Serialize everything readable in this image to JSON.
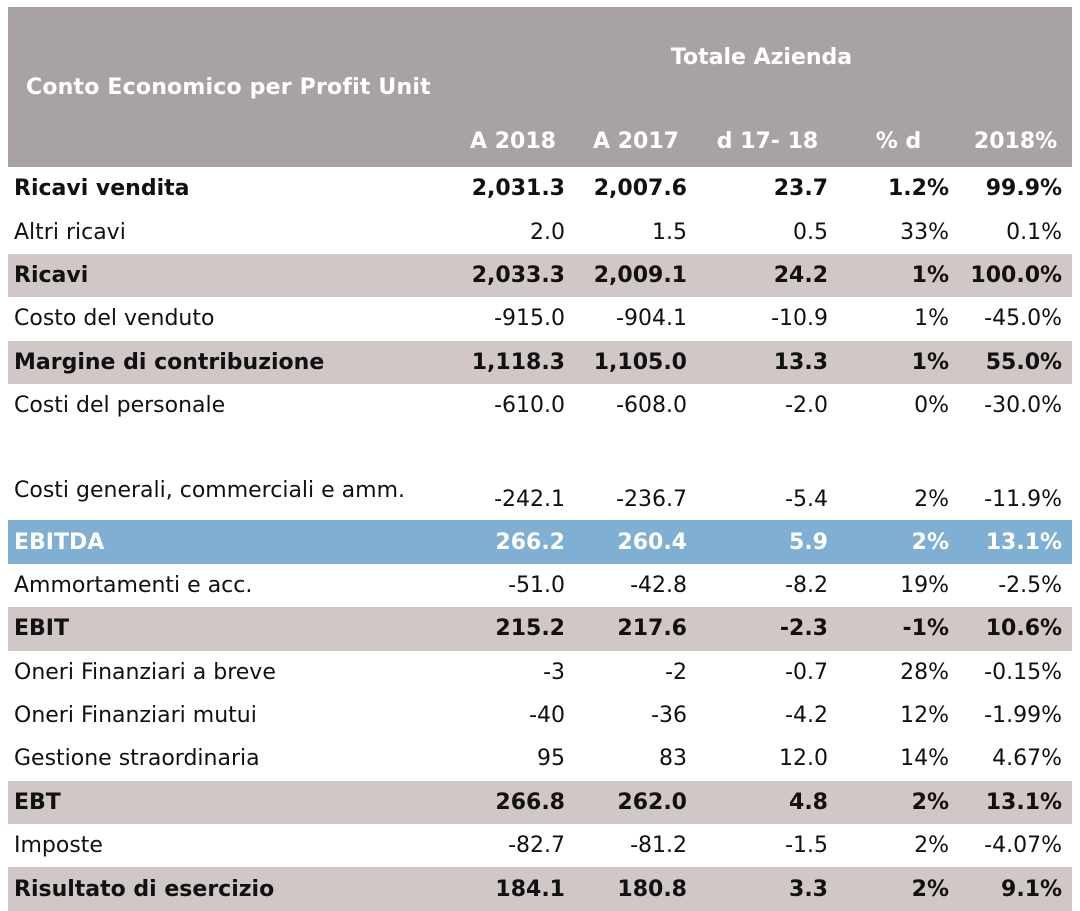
{
  "header": {
    "title": "Conto  Economico  per  Profit  Unit",
    "group": "Totale Azienda",
    "columns": [
      "A 2018",
      "A 2017",
      "d 17- 18",
      "% d",
      "2018%"
    ]
  },
  "rows": [
    {
      "label": "Ricavi vendita",
      "values": [
        "2,031.3",
        "2,007.6",
        "23.7",
        "1.2%",
        "99.9%"
      ]
    },
    {
      "label": "Altri ricavi",
      "values": [
        "2.0",
        "1.5",
        "0.5",
        "33%",
        "0.1%"
      ]
    },
    {
      "label": "Ricavi",
      "values": [
        "2,033.3",
        "2,009.1",
        "24.2",
        "1%",
        "100.0%"
      ]
    },
    {
      "label": "Costo del venduto",
      "values": [
        "-915.0",
        "-904.1",
        "-10.9",
        "1%",
        "-45.0%"
      ]
    },
    {
      "label": "Margine di contribuzione",
      "values": [
        "1,118.3",
        "1,105.0",
        "13.3",
        "1%",
        "55.0%"
      ]
    },
    {
      "label": "Costi del personale",
      "values": [
        "-610.0",
        "-608.0",
        "-2.0",
        "0%",
        "-30.0%"
      ]
    },
    {
      "label": "Costi generali, commerciali e amm.",
      "values": [
        "-242.1",
        "-236.7",
        "-5.4",
        "2%",
        "-11.9%"
      ]
    },
    {
      "label": "EBITDA",
      "values": [
        "266.2",
        "260.4",
        "5.9",
        "2%",
        "13.1%"
      ]
    },
    {
      "label": "Ammortamenti e acc.",
      "values": [
        "-51.0",
        "-42.8",
        "-8.2",
        "19%",
        "-2.5%"
      ]
    },
    {
      "label": "EBIT",
      "values": [
        "215.2",
        "217.6",
        "-2.3",
        "-1%",
        "10.6%"
      ]
    },
    {
      "label": "Oneri Finanziari a breve",
      "values": [
        "-3",
        "-2",
        "-0.7",
        "28%",
        "-0.15%"
      ]
    },
    {
      "label": "Oneri Finanziari mutui",
      "values": [
        "-40",
        "-36",
        "-4.2",
        "12%",
        "-1.99%"
      ]
    },
    {
      "label": "Gestione straordinaria",
      "values": [
        "95",
        "83",
        "12.0",
        "14%",
        "4.67%"
      ]
    },
    {
      "label": "EBT",
      "values": [
        "266.8",
        "262.0",
        "4.8",
        "2%",
        "13.1%"
      ]
    },
    {
      "label": "Imposte",
      "values": [
        "-82.7",
        "-81.2",
        "-1.5",
        "2%",
        "-4.07%"
      ]
    },
    {
      "label": "Risultato di esercizio",
      "values": [
        "184.1",
        "180.8",
        "3.3",
        "2%",
        "9.1%"
      ]
    }
  ],
  "colors": {
    "header_bg": "#a8a2a2",
    "subtotal_bg": "#d0c7c6",
    "ebitda_bg": "#7fb0d4"
  }
}
